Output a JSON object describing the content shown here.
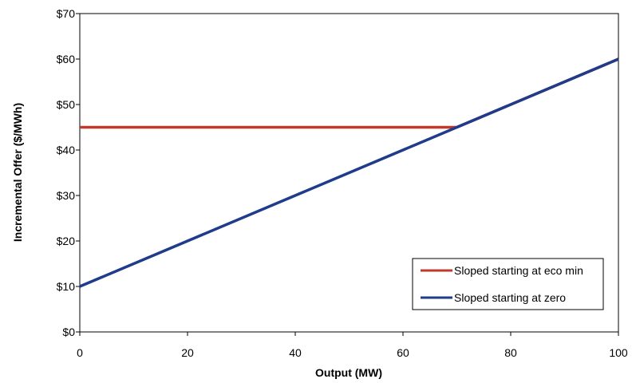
{
  "chart_data": {
    "type": "line",
    "xlabel": "Output (MW)",
    "ylabel": "Incremental Offer ($/MWh)",
    "xlim": [
      0,
      100
    ],
    "ylim": [
      0,
      70
    ],
    "x_ticks": [
      0,
      20,
      40,
      60,
      80,
      100
    ],
    "x_tick_labels": [
      "0",
      "20",
      "40",
      "60",
      "80",
      "100"
    ],
    "y_ticks": [
      0,
      10,
      20,
      30,
      40,
      50,
      60,
      70
    ],
    "y_tick_labels": [
      "$0",
      "$10",
      "$20",
      "$30",
      "$40",
      "$50",
      "$60",
      "$70"
    ],
    "grid": false,
    "legend_position": "bottom-right",
    "series": [
      {
        "name": "Sloped starting at eco min",
        "color": "#c0392b",
        "points": [
          [
            0,
            45
          ],
          [
            70,
            45
          ],
          [
            100,
            60
          ]
        ]
      },
      {
        "name": "Sloped starting at zero",
        "color": "#1f3b8c",
        "points": [
          [
            0,
            10
          ],
          [
            100,
            60
          ]
        ]
      }
    ]
  }
}
